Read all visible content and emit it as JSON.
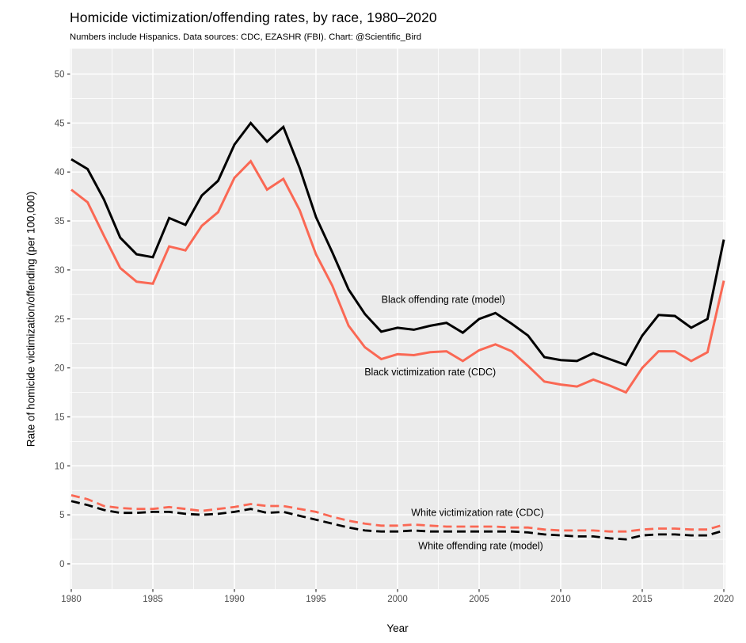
{
  "header": {
    "title": "Homicide victimization/offending rates, by race, 1980–2020",
    "subtitle": "Numbers include Hispanics. Data sources: CDC, EZASHR (FBI). Chart: @Scientific_Bird"
  },
  "chart_data": {
    "type": "line",
    "title": "Homicide victimization/offending rates, by race, 1980–2020",
    "subtitle": "Numbers include Hispanics. Data sources: CDC, EZASHR (FBI). Chart: @Scientific_Bird",
    "xlabel": "Year",
    "ylabel": "Rate of homicide victimization/offending (per 100,000)",
    "xlim": [
      1980,
      2020
    ],
    "ylim": [
      0,
      52.6
    ],
    "x_ticks": [
      1980,
      1985,
      1990,
      1995,
      2000,
      2005,
      2010,
      2015,
      2020
    ],
    "y_ticks": [
      0,
      5,
      10,
      15,
      20,
      25,
      30,
      35,
      40,
      45,
      50
    ],
    "grid": "major white + minor white on gray panel",
    "legend_position": "none (direct line labels)",
    "panel_background": "#EBEBEB",
    "gridline_color": "#FFFFFF",
    "tick_label_color": "#4D4D4D",
    "accent_red": "#FA6854",
    "accent_black": "#000000",
    "years": [
      1980,
      1981,
      1982,
      1983,
      1984,
      1985,
      1986,
      1987,
      1988,
      1989,
      1990,
      1991,
      1992,
      1993,
      1994,
      1995,
      1996,
      1997,
      1998,
      1999,
      2000,
      2001,
      2002,
      2003,
      2004,
      2005,
      2006,
      2007,
      2008,
      2009,
      2010,
      2011,
      2012,
      2013,
      2014,
      2015,
      2016,
      2017,
      2018,
      2019,
      2020
    ],
    "series": [
      {
        "name": "Black offending rate (model)",
        "color": "#000000",
        "dash": "solid",
        "values": [
          41.3,
          40.3,
          37.2,
          33.3,
          31.6,
          31.3,
          35.3,
          34.6,
          37.6,
          39.1,
          42.8,
          45.0,
          43.1,
          44.6,
          40.4,
          35.4,
          31.8,
          28.0,
          25.5,
          23.7,
          24.1,
          23.9,
          24.3,
          24.6,
          23.6,
          25.0,
          25.6,
          24.5,
          23.3,
          21.1,
          20.8,
          20.7,
          21.5,
          20.9,
          20.3,
          23.3,
          25.4,
          25.3,
          24.1,
          25.0,
          33.1
        ]
      },
      {
        "name": "Black victimization rate (CDC)",
        "color": "#FA6854",
        "dash": "solid",
        "values": [
          38.2,
          36.9,
          33.5,
          30.2,
          28.8,
          28.6,
          32.4,
          32.0,
          34.5,
          35.9,
          39.4,
          41.1,
          38.2,
          39.3,
          36.1,
          31.6,
          28.4,
          24.3,
          22.1,
          20.9,
          21.4,
          21.3,
          21.6,
          21.7,
          20.7,
          21.8,
          22.4,
          21.7,
          20.2,
          18.6,
          18.3,
          18.1,
          18.8,
          18.2,
          17.5,
          20.0,
          21.7,
          21.7,
          20.7,
          21.6,
          28.9
        ]
      },
      {
        "name": "White victimization rate (CDC)",
        "color": "#FA6854",
        "dash": "dashed",
        "values": [
          7.0,
          6.6,
          5.9,
          5.7,
          5.6,
          5.6,
          5.8,
          5.6,
          5.4,
          5.6,
          5.8,
          6.1,
          5.9,
          5.9,
          5.6,
          5.3,
          4.8,
          4.4,
          4.1,
          3.9,
          3.9,
          4.0,
          3.9,
          3.8,
          3.8,
          3.8,
          3.8,
          3.7,
          3.7,
          3.5,
          3.4,
          3.4,
          3.4,
          3.3,
          3.3,
          3.5,
          3.6,
          3.6,
          3.5,
          3.5,
          4.0
        ]
      },
      {
        "name": "White offending rate (model)",
        "color": "#000000",
        "dash": "dashed",
        "values": [
          6.4,
          6.0,
          5.5,
          5.2,
          5.2,
          5.3,
          5.3,
          5.1,
          5.0,
          5.1,
          5.3,
          5.6,
          5.2,
          5.3,
          4.9,
          4.5,
          4.1,
          3.7,
          3.4,
          3.3,
          3.3,
          3.4,
          3.3,
          3.3,
          3.3,
          3.3,
          3.3,
          3.3,
          3.2,
          3.0,
          2.9,
          2.8,
          2.8,
          2.6,
          2.5,
          2.9,
          3.0,
          3.0,
          2.9,
          2.9,
          3.4
        ]
      }
    ],
    "annotations": [
      {
        "text": "Black offending rate (model)",
        "year": 2002.8,
        "value": 27.0
      },
      {
        "text": "Black victimization rate (CDC)",
        "year": 2002.0,
        "value": 19.6
      },
      {
        "text": "White victimization rate (CDC)",
        "year": 2004.9,
        "value": 5.25
      },
      {
        "text": "White offending rate (model)",
        "year": 2005.1,
        "value": 1.85
      }
    ]
  }
}
